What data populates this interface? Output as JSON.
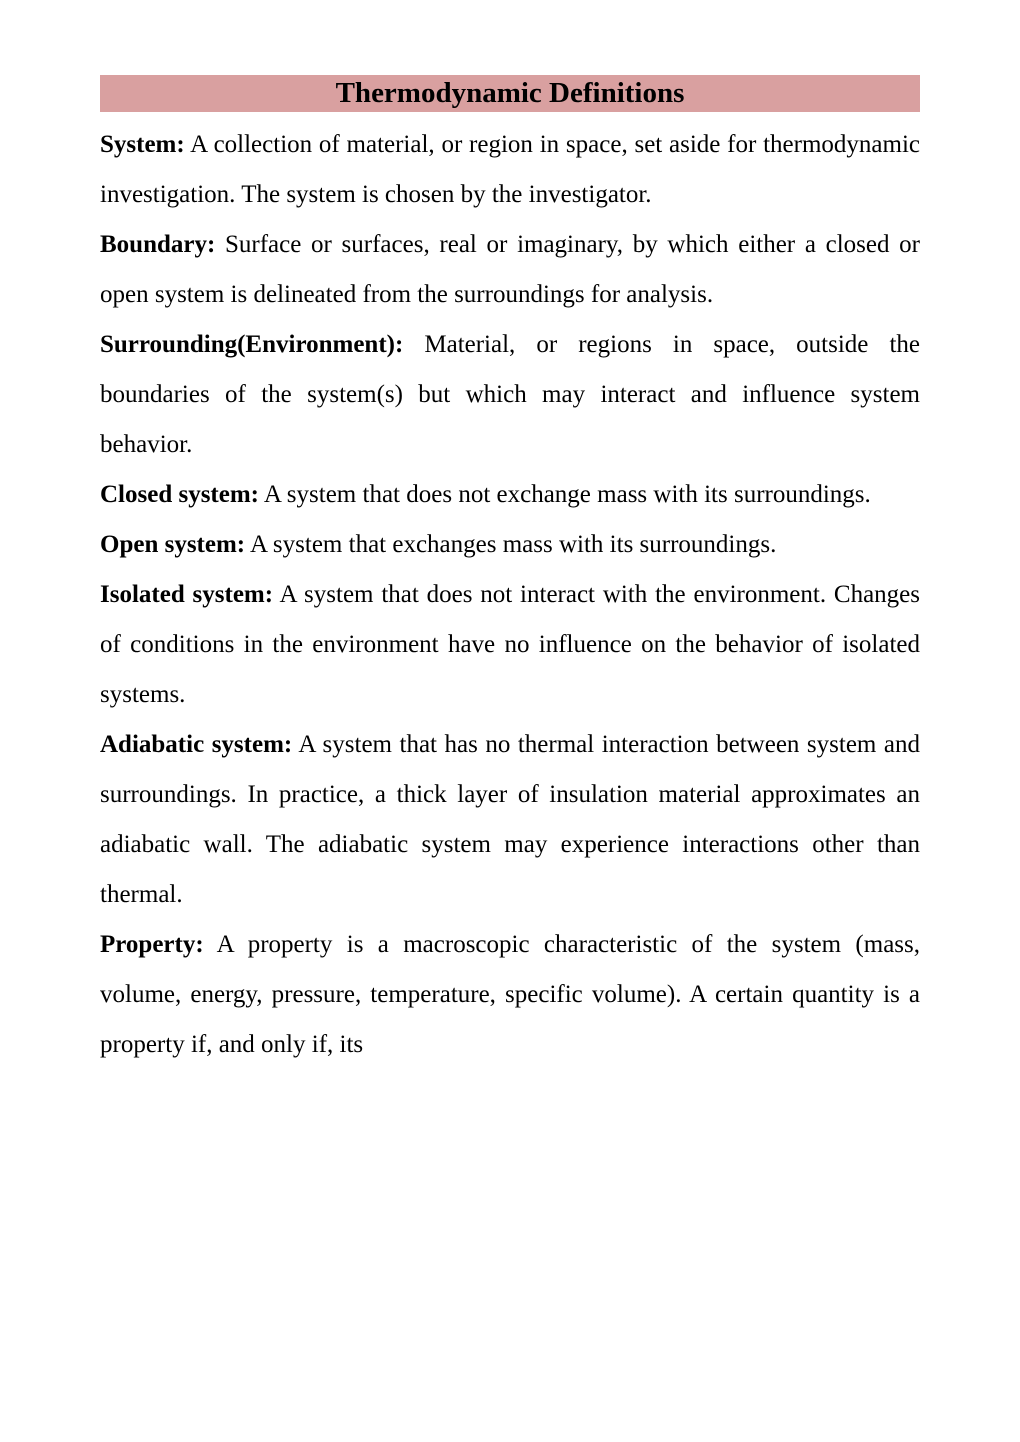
{
  "title": "Thermodynamic Definitions",
  "definitions": [
    {
      "term": "System:",
      "text": " A collection of material, or region in space, set aside for thermodynamic investigation. The system is chosen by the investigator."
    },
    {
      "term": "Boundary:",
      "text": " Surface or surfaces, real or imaginary, by which either a closed or open system is delineated from the surroundings for analysis."
    },
    {
      "term": "Surrounding(Environment):",
      "text": " Material, or regions in space, outside the boundaries of the system(s) but which may interact and influence system behavior."
    },
    {
      "term": "Closed system:",
      "text": " A system that does not exchange mass with its surroundings."
    },
    {
      "term": "Open system:",
      "text": " A system that exchanges mass with its surroundings."
    },
    {
      "term": "Isolated system:",
      "text": " A system that does not interact with the environment. Changes of conditions in the environment have no influence on the behavior of isolated systems."
    },
    {
      "term": "Adiabatic system:",
      "text": " A system that has no thermal interaction between system and surroundings. In practice, a thick layer of insulation material approximates an adiabatic wall. The adiabatic system may experience interactions other than thermal."
    },
    {
      "term": "Property:",
      "text": " A property is a macroscopic characteristic of the system (mass, volume, energy, pressure, temperature, specific volume). A certain quantity is a property if, and only if, its"
    }
  ],
  "styling": {
    "title_bg_color": "#d9a0a0",
    "title_fontsize": 29,
    "body_fontsize": 25,
    "text_color": "#000000",
    "bg_color": "#ffffff",
    "font_family": "Times New Roman",
    "line_height": 2.0,
    "text_align": "justify"
  }
}
